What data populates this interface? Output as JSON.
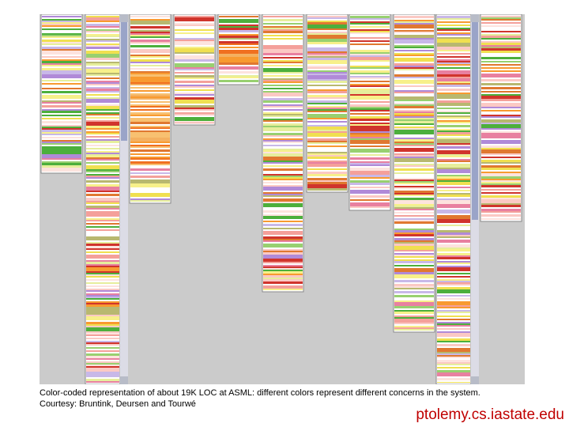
{
  "caption": {
    "line1": "Color-coded representation of about 19K LOC at ASML: different colors represent different concerns in the system.",
    "line2": "Courtesy: Bruntink, Deursen and Tourwé"
  },
  "source": "ptolemy.cs.iastate.edu",
  "palette": {
    "background": "#cbcbcb",
    "column_border": "#888888",
    "stripe_colors": [
      "#f4a09a",
      "#fbc9c4",
      "#fde3de",
      "#f0e050",
      "#f7f08a",
      "#e6ee9c",
      "#98d070",
      "#4caf3c",
      "#b08ad8",
      "#e07830",
      "#f89a30",
      "#b8b870",
      "#d0342c",
      "#e880a0",
      "#c8b8e8",
      "#ffffff"
    ]
  },
  "columns": [
    {
      "name": "column-1",
      "length": 0.43,
      "orange_share": 0.0
    },
    {
      "name": "column-2",
      "length": 1.0,
      "orange_share": 0.0
    },
    {
      "name": "column-3",
      "length": 0.51,
      "orange_share": 0.5
    },
    {
      "name": "column-4",
      "length": 0.3,
      "orange_share": 0.0
    },
    {
      "name": "column-5",
      "length": 0.19,
      "orange_share": 0.3
    },
    {
      "name": "column-6",
      "length": 0.75,
      "orange_share": 0.0
    },
    {
      "name": "column-7",
      "length": 0.48,
      "orange_share": 0.0
    },
    {
      "name": "column-8",
      "length": 0.53,
      "orange_share": 0.0
    },
    {
      "name": "column-9",
      "length": 0.86,
      "orange_share": 0.0
    },
    {
      "name": "column-10",
      "length": 1.0,
      "orange_share": 0.0
    },
    {
      "name": "column-11",
      "length": 0.56,
      "orange_share": 0.0
    }
  ],
  "scrollbars": [
    {
      "name": "scrollbar-2",
      "after_column": 2,
      "thumb_start": 0.0,
      "thumb_length": 0.33
    },
    {
      "name": "scrollbar-10",
      "after_column": 10,
      "thumb_start": 0.0,
      "thumb_length": 0.55
    }
  ]
}
